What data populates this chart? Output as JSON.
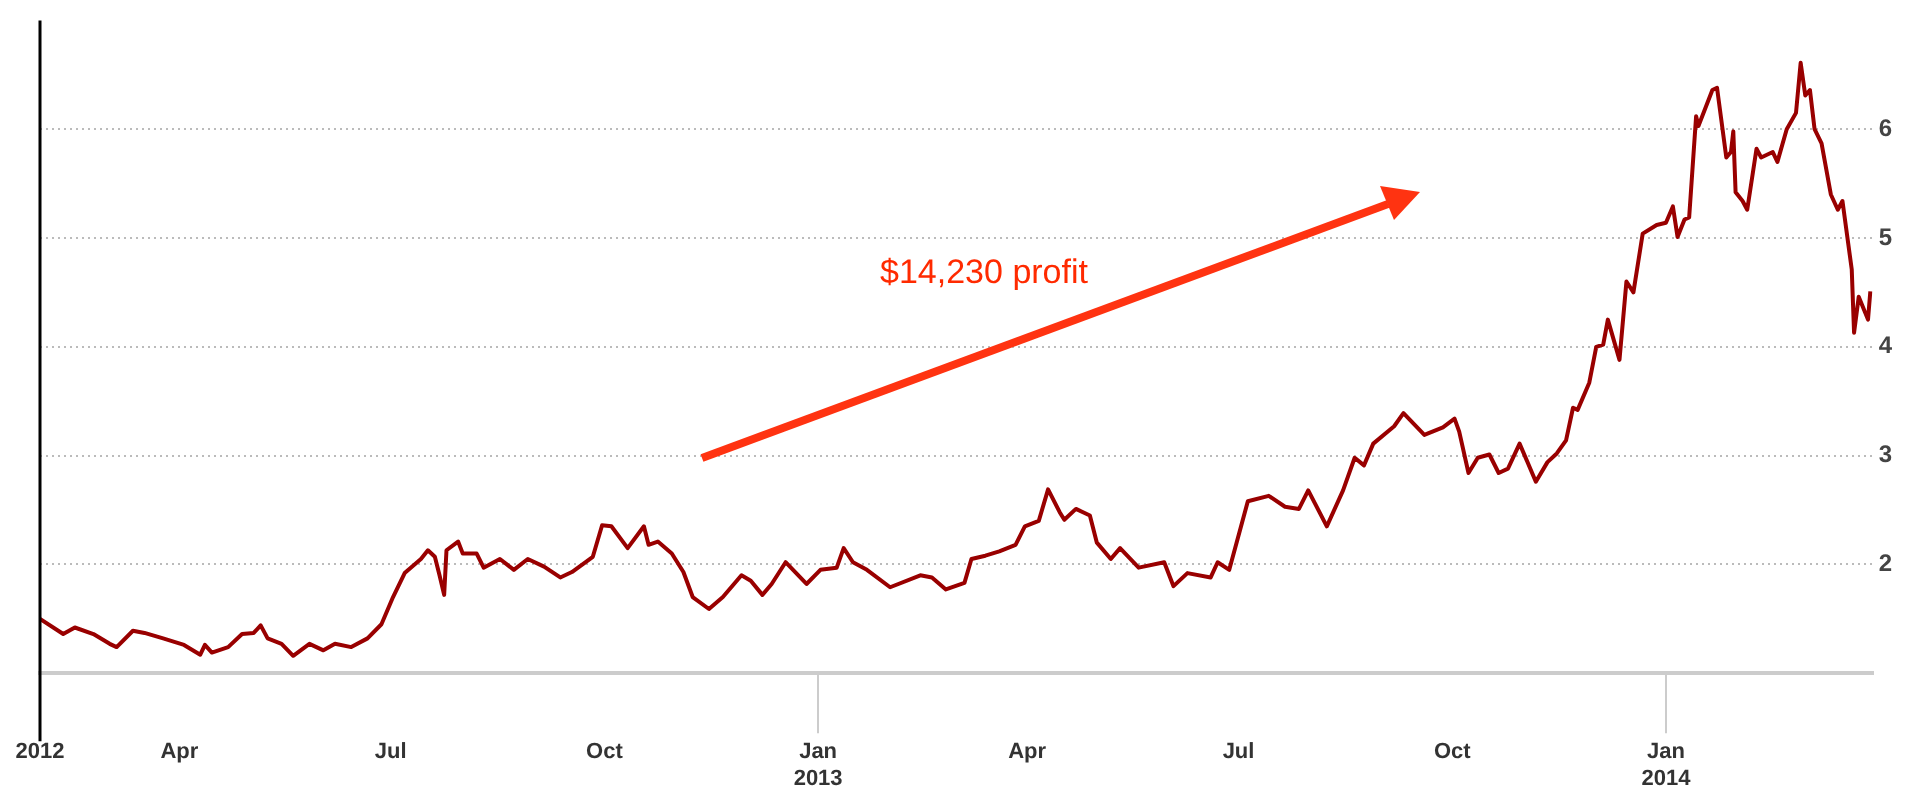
{
  "chart_data": {
    "type": "line",
    "annotations": [
      "$14,230 profit"
    ],
    "x": [
      "2012-02-01",
      "2012-02-11",
      "2012-02-16",
      "2012-02-24",
      "2012-03-02",
      "2012-03-05",
      "2012-03-12",
      "2012-03-17",
      "2012-03-25",
      "2012-04-03",
      "2012-04-10",
      "2012-04-12",
      "2012-04-15",
      "2012-04-22",
      "2012-04-28",
      "2012-05-03",
      "2012-05-06",
      "2012-05-09",
      "2012-05-15",
      "2012-05-20",
      "2012-05-27",
      "2012-06-02",
      "2012-06-07",
      "2012-06-14",
      "2012-06-21",
      "2012-06-27",
      "2012-07-02",
      "2012-07-07",
      "2012-07-14",
      "2012-07-17",
      "2012-07-20",
      "2012-07-22",
      "2012-07-24",
      "2012-07-25",
      "2012-07-30",
      "2012-08-01",
      "2012-08-07",
      "2012-08-10",
      "2012-08-17",
      "2012-08-23",
      "2012-08-29",
      "2012-09-05",
      "2012-09-12",
      "2012-09-17",
      "2012-09-26",
      "2012-09-30",
      "2012-10-04",
      "2012-10-11",
      "2012-10-18",
      "2012-10-20",
      "2012-10-24",
      "2012-10-30",
      "2012-11-04",
      "2012-11-08",
      "2012-11-15",
      "2012-11-21",
      "2012-11-29",
      "2012-12-03",
      "2012-12-08",
      "2012-12-12",
      "2012-12-18",
      "2012-12-27",
      "2013-01-02",
      "2013-01-09",
      "2013-01-12",
      "2013-01-16",
      "2013-01-22",
      "2013-02-01",
      "2013-02-14",
      "2013-02-19",
      "2013-02-25",
      "2013-03-05",
      "2013-03-08",
      "2013-03-14",
      "2013-03-20",
      "2013-03-27",
      "2013-03-31",
      "2013-04-06",
      "2013-04-10",
      "2013-04-15",
      "2013-04-17",
      "2013-04-22",
      "2013-04-28",
      "2013-05-01",
      "2013-05-07",
      "2013-05-11",
      "2013-05-19",
      "2013-05-30",
      "2013-06-03",
      "2013-06-09",
      "2013-06-19",
      "2013-06-22",
      "2013-06-27",
      "2013-07-05",
      "2013-07-14",
      "2013-07-21",
      "2013-07-27",
      "2013-07-31",
      "2013-08-08",
      "2013-08-15",
      "2013-08-20",
      "2013-08-24",
      "2013-08-28",
      "2013-09-06",
      "2013-09-10",
      "2013-09-19",
      "2013-09-27",
      "2013-10-02",
      "2013-10-04",
      "2013-10-08",
      "2013-10-12",
      "2013-10-17",
      "2013-10-21",
      "2013-10-25",
      "2013-10-30",
      "2013-11-06",
      "2013-11-11",
      "2013-11-15",
      "2013-11-19",
      "2013-11-22",
      "2013-11-24",
      "2013-11-29",
      "2013-12-02",
      "2013-12-05",
      "2013-12-07",
      "2013-12-12",
      "2013-12-15",
      "2013-12-18",
      "2013-12-22",
      "2013-12-28",
      "2014-01-01",
      "2014-01-04",
      "2014-01-06",
      "2014-01-09",
      "2014-01-11",
      "2014-01-14",
      "2014-01-15",
      "2014-01-21",
      "2014-01-23",
      "2014-01-27",
      "2014-01-29",
      "2014-01-30",
      "2014-01-31",
      "2014-02-03",
      "2014-02-05",
      "2014-02-09",
      "2014-02-11",
      "2014-02-16",
      "2014-02-18",
      "2014-02-22",
      "2014-02-26",
      "2014-02-28",
      "2014-03-02",
      "2014-03-04",
      "2014-03-06",
      "2014-03-09",
      "2014-03-13",
      "2014-03-16",
      "2014-03-18",
      "2014-03-22",
      "2014-03-23",
      "2014-03-25",
      "2014-03-29",
      "2014-03-30"
    ],
    "series": [
      {
        "color": "#990000",
        "values": [
          1.5,
          1.36,
          1.42,
          1.36,
          1.27,
          1.24,
          1.39,
          1.37,
          1.32,
          1.26,
          1.17,
          1.26,
          1.19,
          1.24,
          1.36,
          1.37,
          1.44,
          1.32,
          1.27,
          1.16,
          1.27,
          1.21,
          1.27,
          1.24,
          1.32,
          1.45,
          1.7,
          1.92,
          2.05,
          2.13,
          2.07,
          1.9,
          1.72,
          2.13,
          2.21,
          2.1,
          2.1,
          1.97,
          2.05,
          1.95,
          2.05,
          1.98,
          1.88,
          1.93,
          2.07,
          2.36,
          2.35,
          2.15,
          2.35,
          2.18,
          2.21,
          2.1,
          1.93,
          1.7,
          1.59,
          1.7,
          1.9,
          1.85,
          1.72,
          1.82,
          2.02,
          1.82,
          1.95,
          1.97,
          2.15,
          2.02,
          1.95,
          1.79,
          1.9,
          1.88,
          1.77,
          1.83,
          2.05,
          2.08,
          2.12,
          2.18,
          2.35,
          2.4,
          2.69,
          2.48,
          2.41,
          2.51,
          2.45,
          2.2,
          2.05,
          2.15,
          1.97,
          2.02,
          1.8,
          1.92,
          1.88,
          2.02,
          1.95,
          2.58,
          2.63,
          2.53,
          2.51,
          2.68,
          2.35,
          2.68,
          2.98,
          2.91,
          3.11,
          3.27,
          3.39,
          3.19,
          3.26,
          3.34,
          3.22,
          2.84,
          2.98,
          3.01,
          2.84,
          2.88,
          3.11,
          2.76,
          2.94,
          3.02,
          3.14,
          3.44,
          3.42,
          3.67,
          4.0,
          4.02,
          4.25,
          3.88,
          4.6,
          4.5,
          5.04,
          5.12,
          5.14,
          5.29,
          5.01,
          5.17,
          5.19,
          6.12,
          6.03,
          6.36,
          6.38,
          5.74,
          5.79,
          5.98,
          5.42,
          5.34,
          5.26,
          5.82,
          5.74,
          5.79,
          5.7,
          6.0,
          6.15,
          6.61,
          6.31,
          6.36,
          6.0,
          5.87,
          5.4,
          5.26,
          5.34,
          4.71,
          4.13,
          4.46,
          4.25,
          4.51
        ]
      }
    ],
    "xlim": [
      "2012-02-01",
      "2014-03-31"
    ],
    "xticks": [
      {
        "value": "2012-02-01",
        "label": "2012"
      },
      {
        "value": "2012-04-01",
        "label": "Apr"
      },
      {
        "value": "2012-07-01",
        "label": "Jul"
      },
      {
        "value": "2012-10-01",
        "label": "Oct"
      },
      {
        "value": "2013-01-01",
        "label": "Jan\n2013"
      },
      {
        "value": "2013-04-01",
        "label": "Apr"
      },
      {
        "value": "2013-07-01",
        "label": "Jul"
      },
      {
        "value": "2013-10-01",
        "label": "Oct"
      },
      {
        "value": "2014-01-01",
        "label": "Jan\n2014"
      }
    ],
    "ylim": [
      1,
      7
    ],
    "yticks": [
      2,
      3,
      4,
      5,
      6
    ],
    "grid": "y",
    "legend": false,
    "marker": "none",
    "line_style": "solid"
  }
}
